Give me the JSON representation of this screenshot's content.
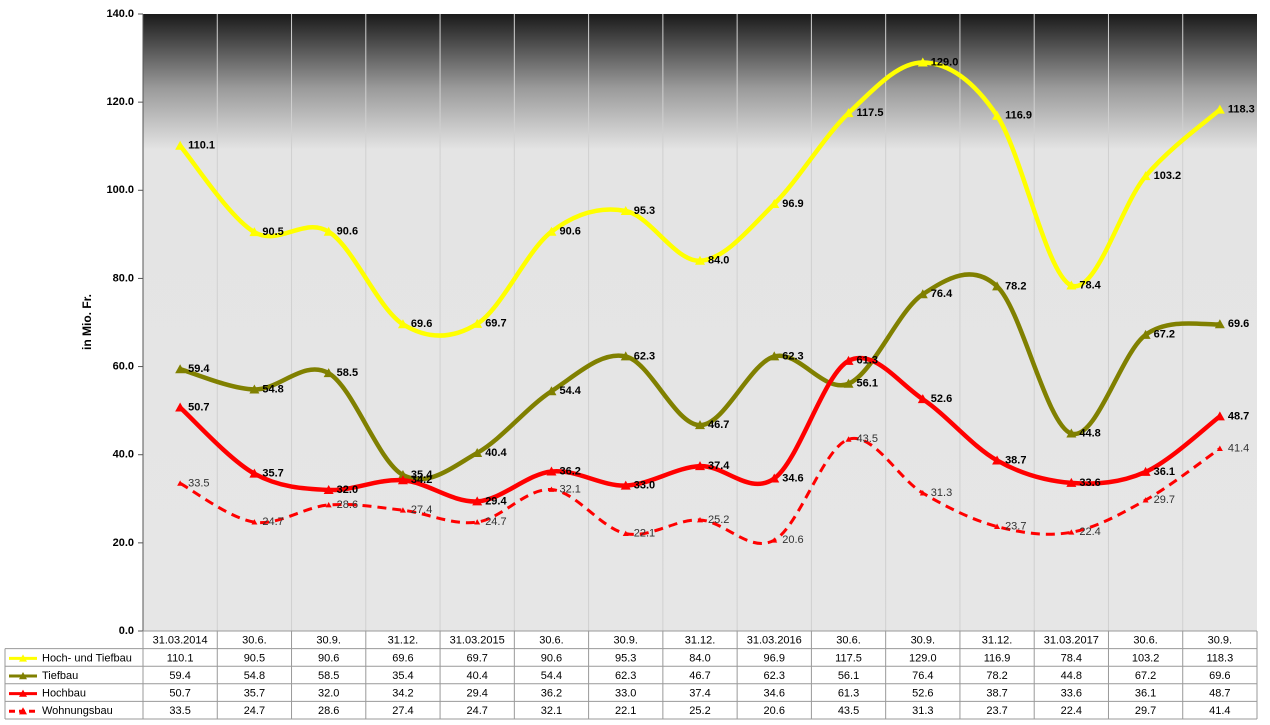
{
  "chart_data": {
    "type": "line",
    "y_axis_label": "in Mio. Fr.",
    "categories": [
      "31.03.2014",
      "30.6.",
      "30.9.",
      "31.12.",
      "31.03.2015",
      "30.6.",
      "30.9.",
      "31.12.",
      "31.03.2016",
      "30.6.",
      "30.9.",
      "31.12.",
      "31.03.2017",
      "30.6.",
      "30.9."
    ],
    "ylim": [
      0,
      140
    ],
    "yticks": [
      {
        "value": 0,
        "label": "0.0"
      },
      {
        "value": 20,
        "label": "20.0"
      },
      {
        "value": 40,
        "label": "40.0"
      },
      {
        "value": 60,
        "label": "60.0"
      },
      {
        "value": 80,
        "label": "80.0"
      },
      {
        "value": 100,
        "label": "100.0"
      },
      {
        "value": 120,
        "label": "120.0"
      },
      {
        "value": 140,
        "label": "140.0"
      }
    ],
    "series": [
      {
        "name": "Hoch- und Tiefbau",
        "color": "#ffff00",
        "dashed": false,
        "values": [
          110.1,
          90.5,
          90.6,
          69.6,
          69.7,
          90.6,
          95.3,
          84.0,
          96.9,
          117.5,
          129.0,
          116.9,
          78.4,
          103.2,
          118.3
        ],
        "value_labels": [
          "110.1",
          "90.5",
          "90.6",
          "69.6",
          "69.7",
          "90.6",
          "95.3",
          "84.0",
          "96.9",
          "117.5",
          "129.0",
          "116.9",
          "78.4",
          "103.2",
          "118.3"
        ]
      },
      {
        "name": "Tiefbau",
        "color": "#808000",
        "dashed": false,
        "values": [
          59.4,
          54.8,
          58.5,
          35.4,
          40.4,
          54.4,
          62.3,
          46.7,
          62.3,
          56.1,
          76.4,
          78.2,
          44.8,
          67.2,
          69.6
        ],
        "value_labels": [
          "59.4",
          "54.8",
          "58.5",
          "35.4",
          "40.4",
          "54.4",
          "62.3",
          "46.7",
          "62.3",
          "56.1",
          "76.4",
          "78.2",
          "44.8",
          "67.2",
          "69.6"
        ]
      },
      {
        "name": "Hochbau",
        "color": "#ff0000",
        "dashed": false,
        "values": [
          50.7,
          35.7,
          32.0,
          34.2,
          29.4,
          36.2,
          33.0,
          37.4,
          34.6,
          61.3,
          52.6,
          38.7,
          33.6,
          36.1,
          48.7
        ],
        "value_labels": [
          "50.7",
          "35.7",
          "32.0",
          "34.2",
          "29.4",
          "36.2",
          "33.0",
          "37.4",
          "34.6",
          "61.3",
          "52.6",
          "38.7",
          "33.6",
          "36.1",
          "48.7"
        ]
      },
      {
        "name": "Wohnungsbau",
        "color": "#ff0000",
        "dashed": true,
        "values": [
          33.5,
          24.7,
          28.6,
          27.4,
          24.7,
          32.1,
          22.1,
          25.2,
          20.6,
          43.5,
          31.3,
          23.7,
          22.4,
          29.7,
          41.4
        ],
        "value_labels": [
          "33.5",
          "24.7",
          "28.6",
          "27.4",
          "24.7",
          "32.1",
          "22.1",
          "25.2",
          "20.6",
          "43.5",
          "31.3",
          "23.7",
          "22.4",
          "29.7",
          "41.4"
        ]
      }
    ]
  }
}
